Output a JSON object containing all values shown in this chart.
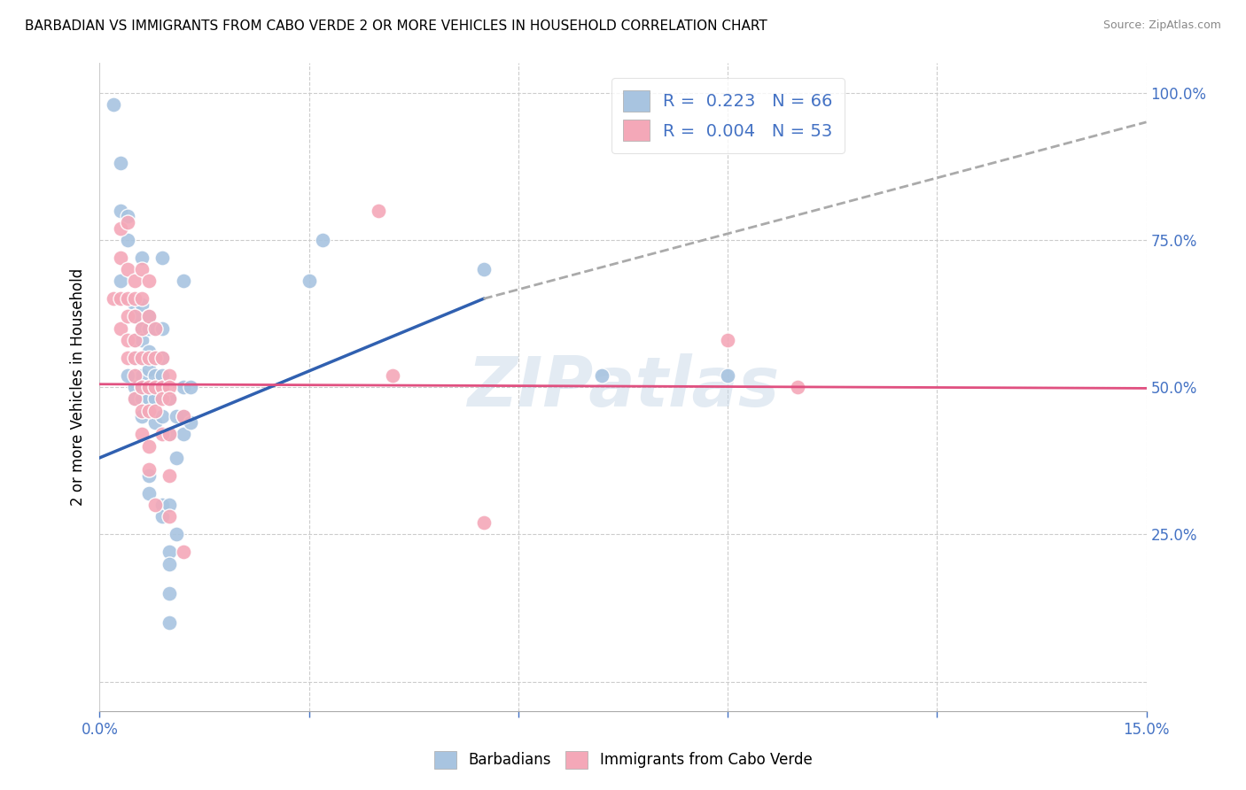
{
  "title": "BARBADIAN VS IMMIGRANTS FROM CABO VERDE 2 OR MORE VEHICLES IN HOUSEHOLD CORRELATION CHART",
  "source": "Source: ZipAtlas.com",
  "ylabel": "2 or more Vehicles in Household",
  "xmin": 0.0,
  "xmax": 0.15,
  "ymin": -0.05,
  "ymax": 1.05,
  "yticks": [
    0.0,
    0.25,
    0.5,
    0.75,
    1.0
  ],
  "ytick_labels_right": [
    "",
    "25.0%",
    "50.0%",
    "75.0%",
    "100.0%"
  ],
  "xticks": [
    0.0,
    0.03,
    0.06,
    0.09,
    0.12,
    0.15
  ],
  "xtick_labels": [
    "0.0%",
    "",
    "",
    "",
    "",
    "15.0%"
  ],
  "barbadian_color": "#a8c4e0",
  "caboverde_color": "#f4a8b8",
  "trend_blue": "#3060b0",
  "trend_pink": "#e05080",
  "trend_gray": "#aaaaaa",
  "blue_trend_x": [
    0.0,
    0.055
  ],
  "blue_trend_y": [
    0.38,
    0.65
  ],
  "gray_trend_x": [
    0.055,
    0.15
  ],
  "gray_trend_y": [
    0.65,
    0.95
  ],
  "pink_trend_x": [
    0.0,
    0.15
  ],
  "pink_trend_y": [
    0.505,
    0.498
  ],
  "watermark": "ZIPatlas",
  "background_color": "#ffffff",
  "title_fontsize": 11,
  "tick_color": "#4472c4",
  "barbadian_scatter": [
    [
      0.002,
      0.98
    ],
    [
      0.003,
      0.8
    ],
    [
      0.003,
      0.68
    ],
    [
      0.004,
      0.79
    ],
    [
      0.004,
      0.75
    ],
    [
      0.005,
      0.64
    ],
    [
      0.005,
      0.62
    ],
    [
      0.005,
      0.58
    ],
    [
      0.005,
      0.55
    ],
    [
      0.005,
      0.52
    ],
    [
      0.005,
      0.5
    ],
    [
      0.005,
      0.48
    ],
    [
      0.006,
      0.64
    ],
    [
      0.006,
      0.6
    ],
    [
      0.006,
      0.58
    ],
    [
      0.006,
      0.55
    ],
    [
      0.006,
      0.52
    ],
    [
      0.006,
      0.5
    ],
    [
      0.006,
      0.48
    ],
    [
      0.006,
      0.45
    ],
    [
      0.007,
      0.62
    ],
    [
      0.007,
      0.6
    ],
    [
      0.007,
      0.56
    ],
    [
      0.007,
      0.53
    ],
    [
      0.007,
      0.5
    ],
    [
      0.007,
      0.48
    ],
    [
      0.007,
      0.35
    ],
    [
      0.007,
      0.32
    ],
    [
      0.008,
      0.6
    ],
    [
      0.008,
      0.55
    ],
    [
      0.008,
      0.52
    ],
    [
      0.008,
      0.5
    ],
    [
      0.008,
      0.48
    ],
    [
      0.008,
      0.44
    ],
    [
      0.009,
      0.72
    ],
    [
      0.009,
      0.55
    ],
    [
      0.009,
      0.52
    ],
    [
      0.009,
      0.5
    ],
    [
      0.009,
      0.45
    ],
    [
      0.009,
      0.3
    ],
    [
      0.009,
      0.28
    ],
    [
      0.01,
      0.48
    ],
    [
      0.01,
      0.42
    ],
    [
      0.01,
      0.3
    ],
    [
      0.01,
      0.22
    ],
    [
      0.01,
      0.2
    ],
    [
      0.01,
      0.15
    ],
    [
      0.01,
      0.1
    ],
    [
      0.011,
      0.45
    ],
    [
      0.011,
      0.38
    ],
    [
      0.011,
      0.25
    ],
    [
      0.012,
      0.68
    ],
    [
      0.012,
      0.5
    ],
    [
      0.012,
      0.45
    ],
    [
      0.012,
      0.42
    ],
    [
      0.013,
      0.5
    ],
    [
      0.013,
      0.44
    ],
    [
      0.03,
      0.68
    ],
    [
      0.032,
      0.75
    ],
    [
      0.055,
      0.7
    ],
    [
      0.072,
      0.52
    ],
    [
      0.09,
      0.52
    ],
    [
      0.003,
      0.88
    ],
    [
      0.004,
      0.52
    ],
    [
      0.006,
      0.72
    ],
    [
      0.009,
      0.6
    ]
  ],
  "caboverde_scatter": [
    [
      0.002,
      0.65
    ],
    [
      0.003,
      0.77
    ],
    [
      0.003,
      0.72
    ],
    [
      0.003,
      0.65
    ],
    [
      0.003,
      0.6
    ],
    [
      0.004,
      0.78
    ],
    [
      0.004,
      0.7
    ],
    [
      0.004,
      0.65
    ],
    [
      0.004,
      0.62
    ],
    [
      0.004,
      0.58
    ],
    [
      0.004,
      0.55
    ],
    [
      0.005,
      0.68
    ],
    [
      0.005,
      0.65
    ],
    [
      0.005,
      0.62
    ],
    [
      0.005,
      0.58
    ],
    [
      0.005,
      0.55
    ],
    [
      0.005,
      0.52
    ],
    [
      0.005,
      0.48
    ],
    [
      0.006,
      0.7
    ],
    [
      0.006,
      0.65
    ],
    [
      0.006,
      0.6
    ],
    [
      0.006,
      0.55
    ],
    [
      0.006,
      0.5
    ],
    [
      0.006,
      0.46
    ],
    [
      0.006,
      0.42
    ],
    [
      0.007,
      0.68
    ],
    [
      0.007,
      0.62
    ],
    [
      0.007,
      0.55
    ],
    [
      0.007,
      0.5
    ],
    [
      0.007,
      0.46
    ],
    [
      0.007,
      0.4
    ],
    [
      0.007,
      0.36
    ],
    [
      0.008,
      0.6
    ],
    [
      0.008,
      0.55
    ],
    [
      0.008,
      0.5
    ],
    [
      0.008,
      0.46
    ],
    [
      0.008,
      0.3
    ],
    [
      0.009,
      0.55
    ],
    [
      0.009,
      0.5
    ],
    [
      0.009,
      0.48
    ],
    [
      0.009,
      0.42
    ],
    [
      0.01,
      0.52
    ],
    [
      0.01,
      0.5
    ],
    [
      0.01,
      0.48
    ],
    [
      0.01,
      0.42
    ],
    [
      0.01,
      0.35
    ],
    [
      0.01,
      0.28
    ],
    [
      0.012,
      0.45
    ],
    [
      0.012,
      0.22
    ],
    [
      0.04,
      0.8
    ],
    [
      0.042,
      0.52
    ],
    [
      0.055,
      0.27
    ],
    [
      0.09,
      0.58
    ],
    [
      0.1,
      0.5
    ]
  ]
}
